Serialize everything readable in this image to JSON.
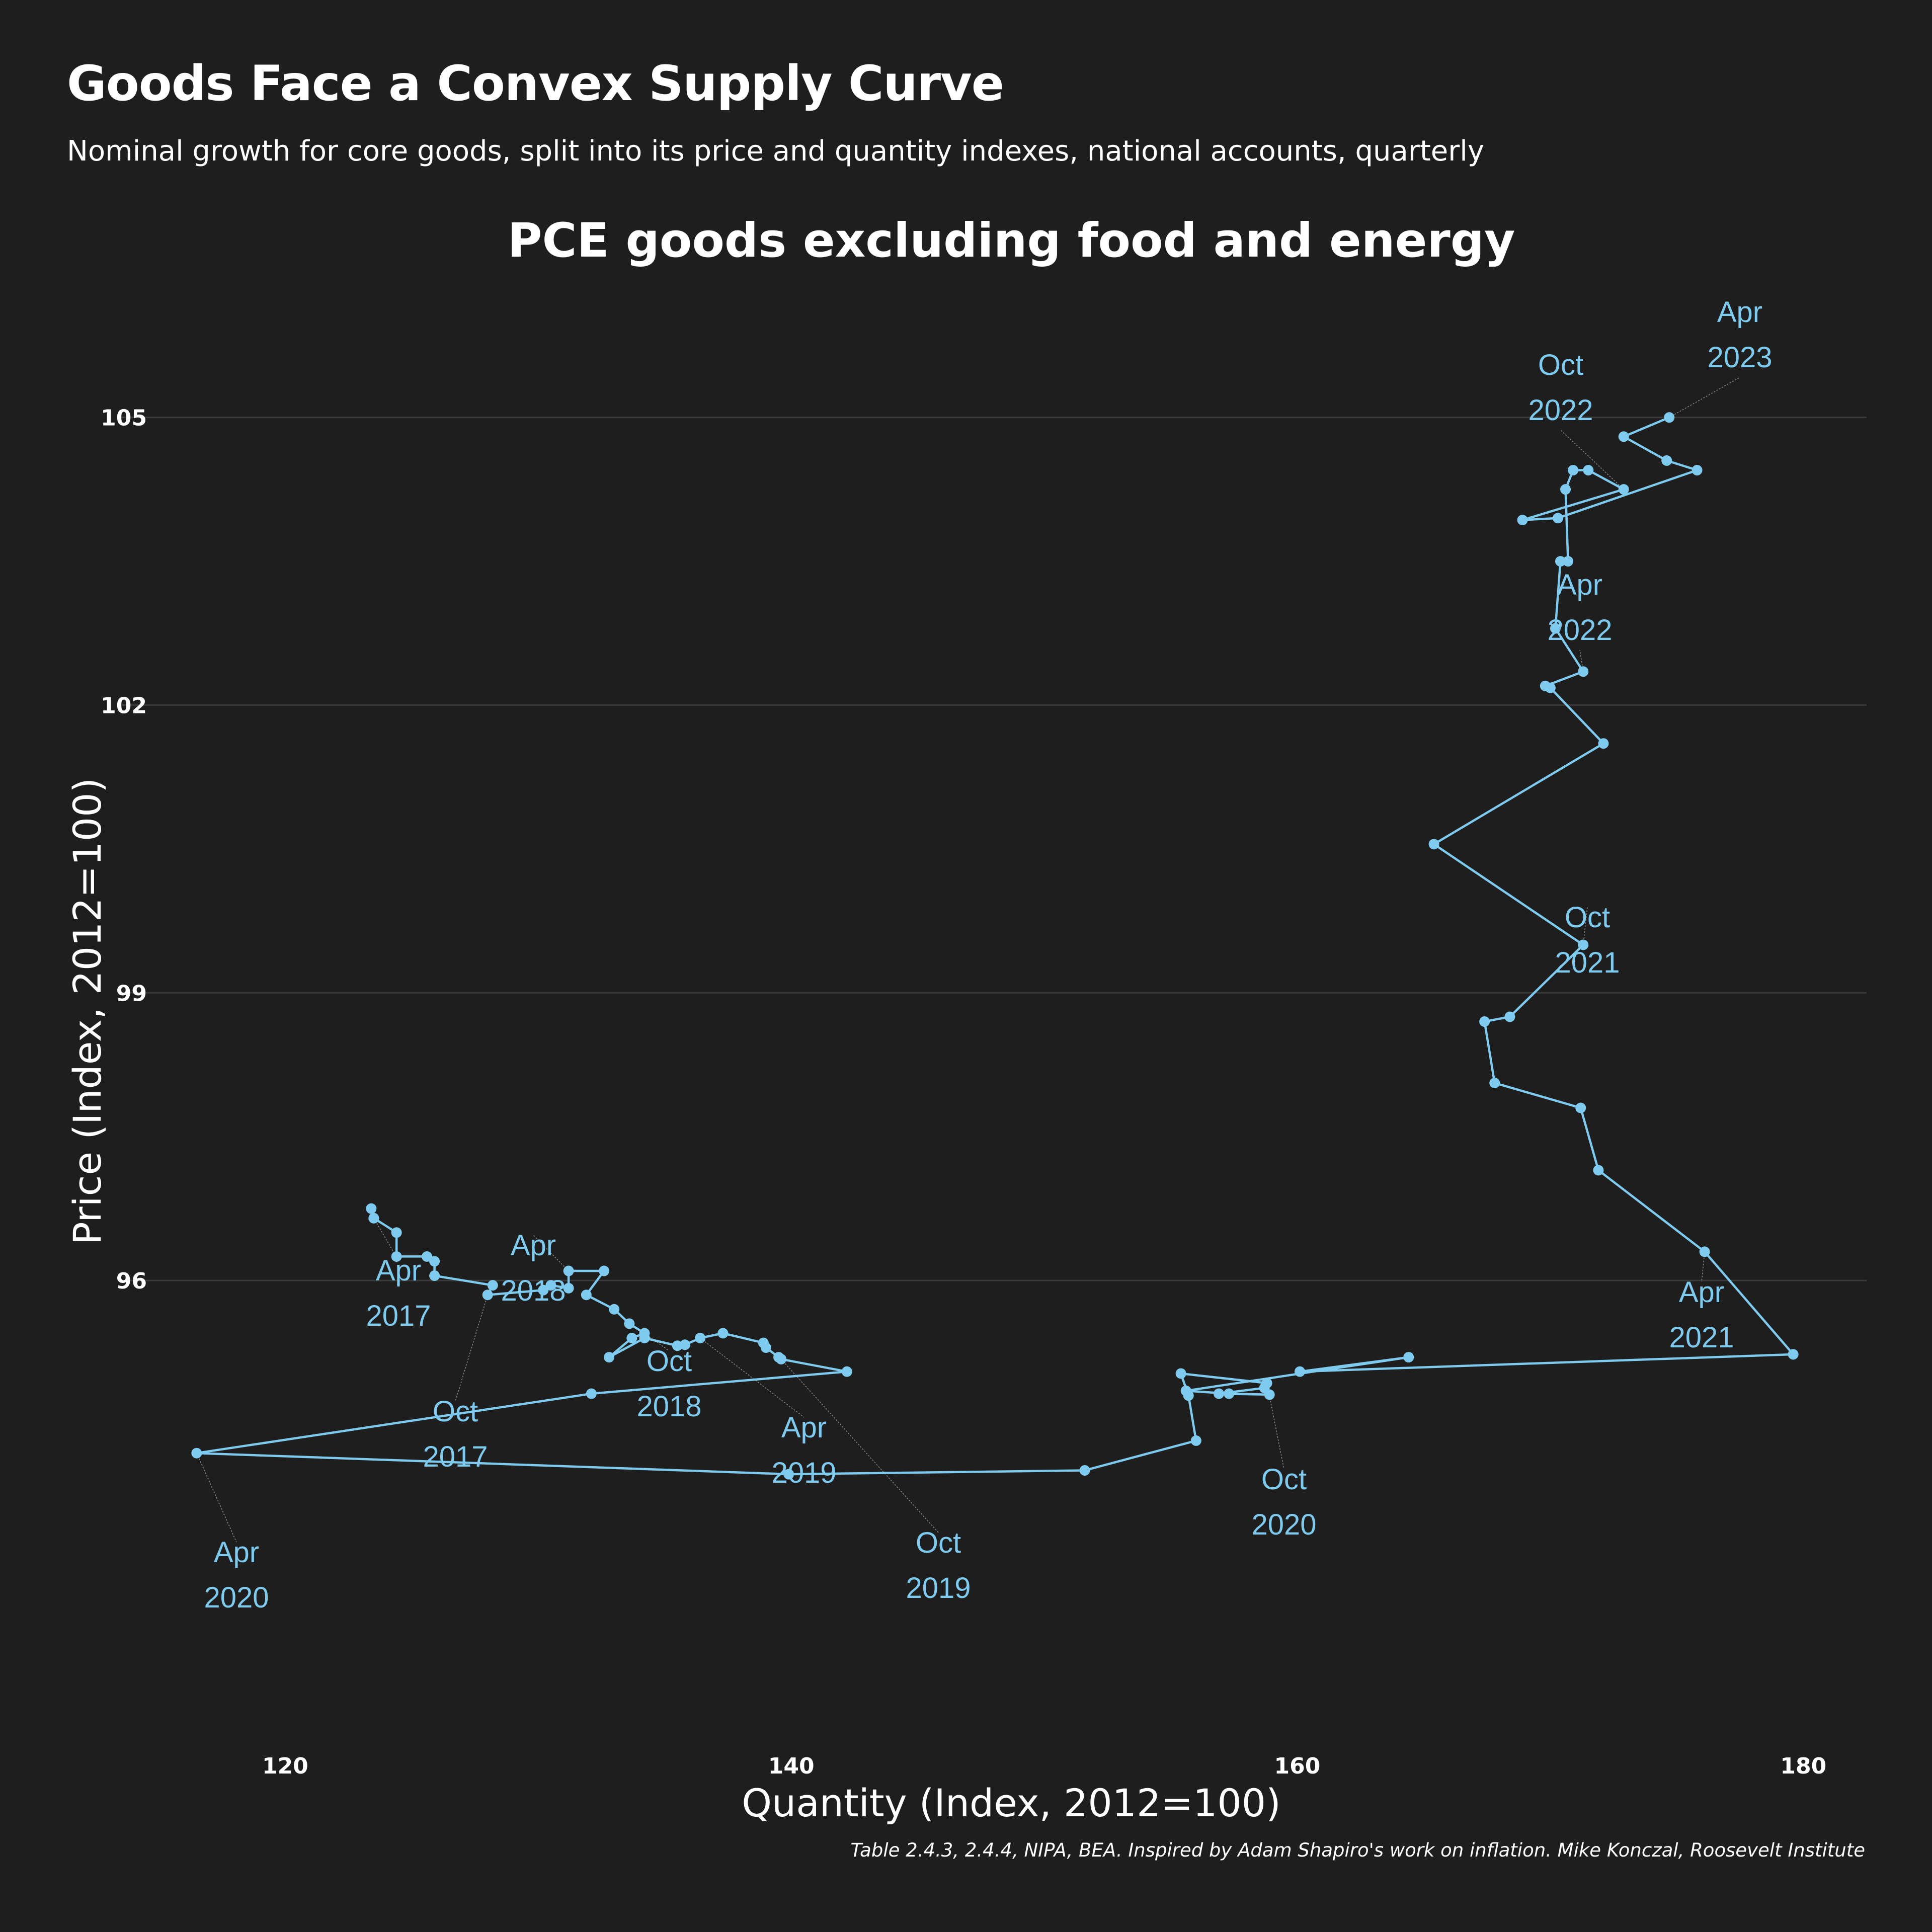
{
  "header": {
    "title": "Goods Face a Convex Supply Curve",
    "subtitle": "Nominal growth for core goods, split into its price and quantity indexes, national accounts, quarterly"
  },
  "footer": {
    "caption": "Table 2.4.3, 2.4.4, NIPA, BEA. Inspired by Adam Shapiro's work on inflation. Mike Konczal, Roosevelt Institute"
  },
  "colors": {
    "background": "#1e1e1e",
    "series": "#7ecbef",
    "grid": "#3a3a3a",
    "text": "#ffffff",
    "leader": "#8a8a8a"
  },
  "chart_data": {
    "type": "scatter",
    "mode": "connected-path",
    "title": "PCE goods excluding food and energy",
    "xlabel": "Quantity (Index, 2012=100)",
    "ylabel": "Price (Index, 2012=100)",
    "xlim": [
      113.5,
      182.5
    ],
    "ylim": [
      91.2,
      106.1
    ],
    "xticks": [
      120,
      140,
      160,
      180
    ],
    "yticks": [
      96,
      99,
      102,
      105
    ],
    "grid": "horizontal",
    "legend": "none",
    "series": [
      {
        "points": [
          [
            123.4,
            96.75
          ],
          [
            123.5,
            96.65
          ],
          [
            123.5,
            96.65
          ],
          [
            124.4,
            96.5
          ],
          [
            124.4,
            96.25
          ],
          [
            125.6,
            96.25
          ],
          [
            125.9,
            96.2
          ],
          [
            125.9,
            96.05
          ],
          [
            128.2,
            95.95
          ],
          [
            128.0,
            95.85
          ],
          [
            130.2,
            95.9
          ],
          [
            130.5,
            95.95
          ],
          [
            131.2,
            95.92
          ],
          [
            131.2,
            96.1
          ],
          [
            132.6,
            96.1
          ],
          [
            131.9,
            95.85
          ],
          [
            133.0,
            95.7
          ],
          [
            133.6,
            95.55
          ],
          [
            134.2,
            95.45
          ],
          [
            133.7,
            95.4
          ],
          [
            132.8,
            95.2
          ],
          [
            134.2,
            95.4
          ],
          [
            135.5,
            95.32
          ],
          [
            135.8,
            95.33
          ],
          [
            136.4,
            95.4
          ],
          [
            137.3,
            95.45
          ],
          [
            138.9,
            95.35
          ],
          [
            139.0,
            95.3
          ],
          [
            139.5,
            95.2
          ],
          [
            139.6,
            95.18
          ],
          [
            142.2,
            95.05
          ],
          [
            132.1,
            94.82
          ],
          [
            116.5,
            94.2
          ],
          [
            139.9,
            93.98
          ],
          [
            151.6,
            94.02
          ],
          [
            156.0,
            94.33
          ],
          [
            155.7,
            94.8
          ],
          [
            155.4,
            95.03
          ],
          [
            158.8,
            94.93
          ],
          [
            158.7,
            94.88
          ],
          [
            156.9,
            94.82
          ],
          [
            158.9,
            94.81
          ],
          [
            157.3,
            94.82
          ],
          [
            155.6,
            94.85
          ],
          [
            164.4,
            95.2
          ],
          [
            160.1,
            95.05
          ],
          [
            179.6,
            95.23
          ],
          [
            176.1,
            96.3
          ],
          [
            171.9,
            97.15
          ],
          [
            171.2,
            97.8
          ],
          [
            167.8,
            98.06
          ],
          [
            167.4,
            98.7
          ],
          [
            168.4,
            98.75
          ],
          [
            171.3,
            99.5
          ],
          [
            165.4,
            100.55
          ],
          [
            172.1,
            101.6
          ],
          [
            170.0,
            102.18
          ],
          [
            169.8,
            102.2
          ],
          [
            171.3,
            102.35
          ],
          [
            170.2,
            102.8
          ],
          [
            170.4,
            103.5
          ],
          [
            170.7,
            103.5
          ],
          [
            170.6,
            104.25
          ],
          [
            170.9,
            104.45
          ],
          [
            171.5,
            104.45
          ],
          [
            172.9,
            104.25
          ],
          [
            168.9,
            103.93
          ],
          [
            170.3,
            103.95
          ],
          [
            175.8,
            104.45
          ],
          [
            174.6,
            104.55
          ],
          [
            172.9,
            104.8
          ],
          [
            174.7,
            105.0
          ]
        ]
      }
    ],
    "annotations": [
      {
        "line1": "Apr",
        "line2": "2017"
      },
      {
        "line1": "Oct",
        "line2": "2017"
      },
      {
        "line1": "Apr",
        "line2": "2018"
      },
      {
        "line1": "Oct",
        "line2": "2018"
      },
      {
        "line1": "Apr",
        "line2": "2019"
      },
      {
        "line1": "Oct",
        "line2": "2019"
      },
      {
        "line1": "Apr",
        "line2": "2020"
      },
      {
        "line1": "Oct",
        "line2": "2020"
      },
      {
        "line1": "Apr",
        "line2": "2021"
      },
      {
        "line1": "Oct",
        "line2": "2021"
      },
      {
        "line1": "Apr",
        "line2": "2022"
      },
      {
        "line1": "Oct",
        "line2": "2022"
      },
      {
        "line1": "Apr",
        "line2": "2023"
      }
    ]
  }
}
